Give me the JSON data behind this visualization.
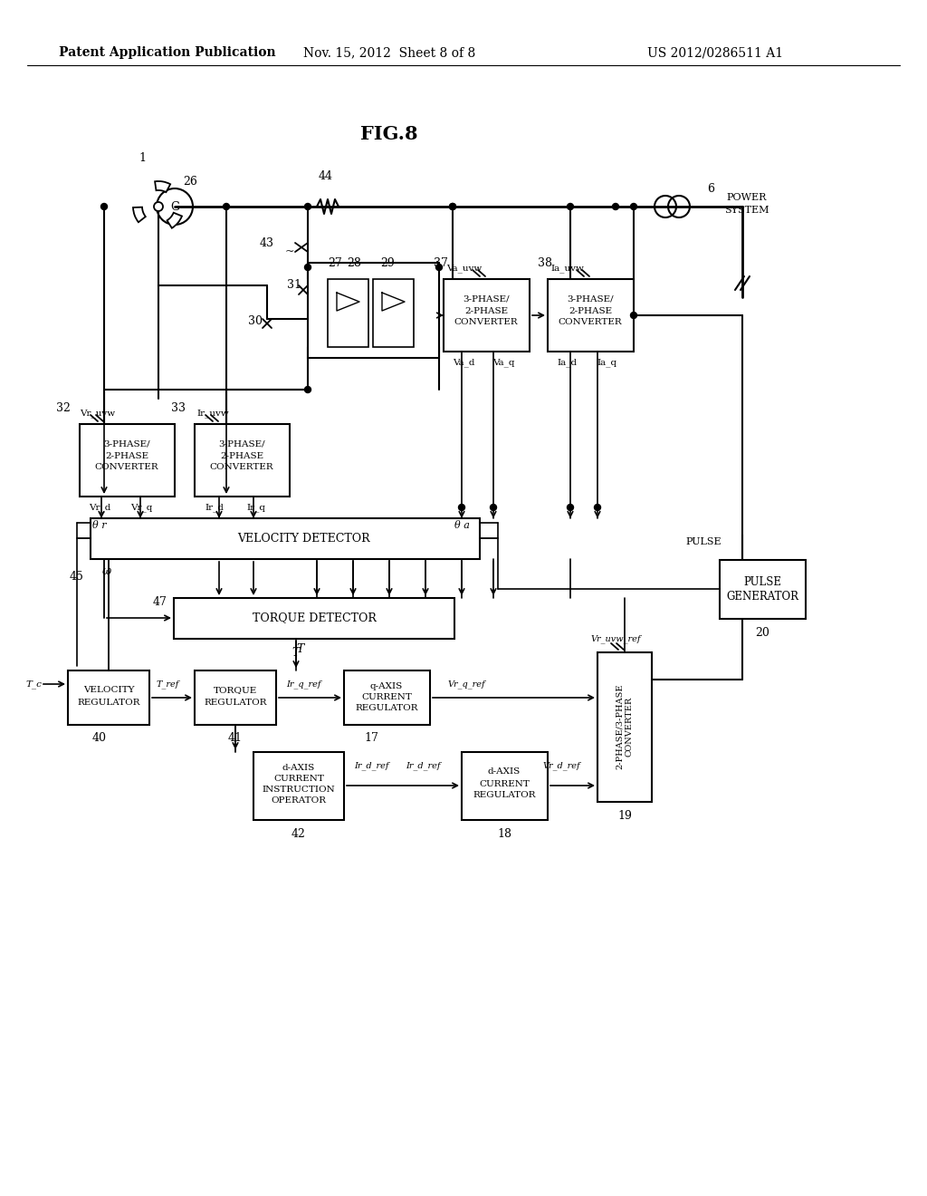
{
  "bg_color": "#ffffff",
  "text_color": "#000000",
  "line_color": "#000000",
  "header_left": "Patent Application Publication",
  "header_mid": "Nov. 15, 2012  Sheet 8 of 8",
  "header_right": "US 2012/0286511 A1",
  "fig_label": "FIG.8"
}
